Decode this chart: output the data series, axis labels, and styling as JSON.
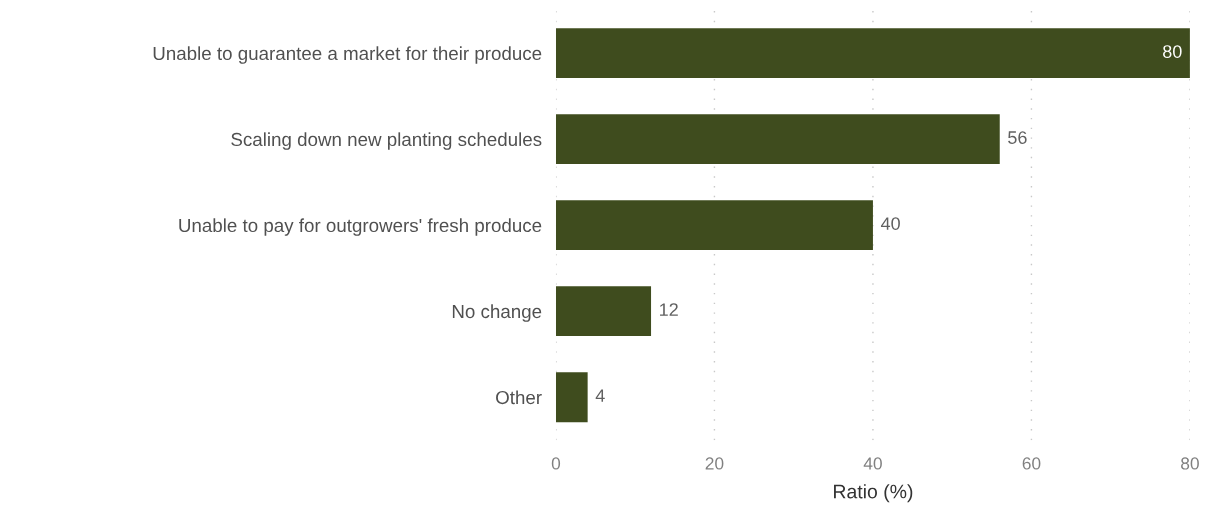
{
  "chart_data": {
    "type": "bar",
    "orientation": "horizontal",
    "xlabel": "Ratio (%)",
    "categories": [
      "Unable to guarantee a market for their produce",
      "Scaling down new planting schedules",
      "Unable to pay for outgrowers' fresh produce",
      "No change",
      "Other"
    ],
    "values": [
      80,
      56,
      40,
      12,
      4
    ],
    "color": "#3f4c1e",
    "xlim": [
      0,
      80
    ],
    "xticks": [
      0,
      20,
      40,
      60,
      80
    ],
    "grid": "x",
    "data_labels": true
  }
}
